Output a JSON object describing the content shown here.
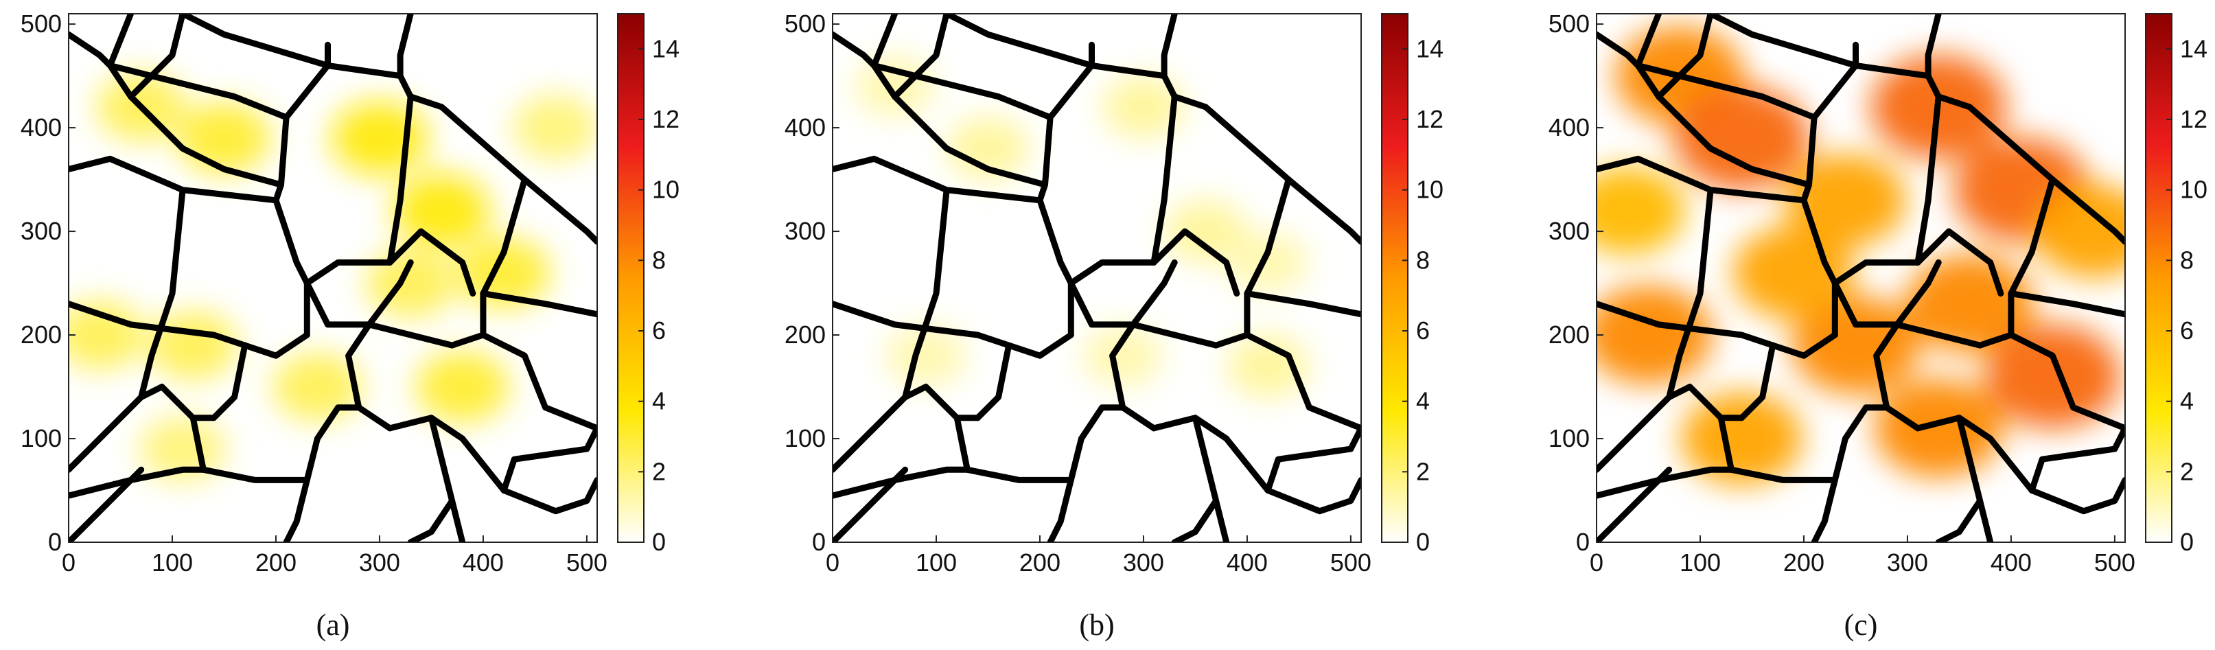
{
  "figure": {
    "captions": [
      "(a)",
      "(b)",
      "(c)"
    ]
  },
  "chart_data": [
    {
      "type": "heatmap",
      "title": "",
      "xlabel": "",
      "ylabel": "",
      "xlim": [
        0,
        510
      ],
      "ylim": [
        0,
        510
      ],
      "x_ticks": [
        0,
        100,
        200,
        300,
        400,
        500
      ],
      "y_ticks": [
        0,
        100,
        200,
        300,
        400,
        500
      ],
      "colorbar": {
        "range": [
          0,
          15
        ],
        "ticks": [
          0,
          2,
          4,
          6,
          8,
          10,
          12,
          14
        ],
        "colors": [
          "#ffffff",
          "#ffe800",
          "#ff9a00",
          "#ee1c1c",
          "#8b0000"
        ]
      },
      "caption": "(a)",
      "overlay": "black grain boundaries (polycrystal microstructure)",
      "field_level": "low-moderate (mostly 1-4)",
      "hotspots": [
        {
          "x": 70,
          "y": 420,
          "v": 2.5
        },
        {
          "x": 150,
          "y": 390,
          "v": 3
        },
        {
          "x": 300,
          "y": 390,
          "v": 3.5
        },
        {
          "x": 360,
          "y": 320,
          "v": 3.5
        },
        {
          "x": 420,
          "y": 260,
          "v": 3
        },
        {
          "x": 330,
          "y": 250,
          "v": 2.5
        },
        {
          "x": 240,
          "y": 150,
          "v": 2.5
        },
        {
          "x": 380,
          "y": 150,
          "v": 3
        },
        {
          "x": 30,
          "y": 200,
          "v": 2.5
        },
        {
          "x": 110,
          "y": 90,
          "v": 2
        },
        {
          "x": 470,
          "y": 400,
          "v": 2
        },
        {
          "x": 120,
          "y": 190,
          "v": 2.5
        }
      ]
    },
    {
      "type": "heatmap",
      "title": "",
      "xlabel": "",
      "ylabel": "",
      "xlim": [
        0,
        510
      ],
      "ylim": [
        0,
        510
      ],
      "x_ticks": [
        0,
        100,
        200,
        300,
        400,
        500
      ],
      "y_ticks": [
        0,
        100,
        200,
        300,
        400,
        500
      ],
      "colorbar": {
        "range": [
          0,
          15
        ],
        "ticks": [
          0,
          2,
          4,
          6,
          8,
          10,
          12,
          14
        ],
        "colors": [
          "#ffffff",
          "#ffe800",
          "#ff9a00",
          "#ee1c1c",
          "#8b0000"
        ]
      },
      "caption": "(b)",
      "overlay": "black grain boundaries (polycrystal microstructure)",
      "field_level": "low (mostly 0-2)",
      "hotspots": [
        {
          "x": 150,
          "y": 380,
          "v": 1.5
        },
        {
          "x": 300,
          "y": 420,
          "v": 1.5
        },
        {
          "x": 360,
          "y": 300,
          "v": 1.5
        },
        {
          "x": 420,
          "y": 270,
          "v": 1.2
        },
        {
          "x": 420,
          "y": 170,
          "v": 1.5
        },
        {
          "x": 280,
          "y": 180,
          "v": 1.2
        },
        {
          "x": 90,
          "y": 180,
          "v": 1.2
        },
        {
          "x": 60,
          "y": 440,
          "v": 1.2
        }
      ]
    },
    {
      "type": "heatmap",
      "title": "",
      "xlabel": "",
      "ylabel": "",
      "xlim": [
        0,
        510
      ],
      "ylim": [
        0,
        510
      ],
      "x_ticks": [
        0,
        100,
        200,
        300,
        400,
        500
      ],
      "y_ticks": [
        0,
        100,
        200,
        300,
        400,
        500
      ],
      "colorbar": {
        "range": [
          0,
          15
        ],
        "ticks": [
          0,
          2,
          4,
          6,
          8,
          10,
          12,
          14
        ],
        "colors": [
          "#ffffff",
          "#ffe800",
          "#ff9a00",
          "#ee1c1c",
          "#8b0000"
        ]
      },
      "caption": "(c)",
      "overlay": "black grain boundaries (polycrystal microstructure)",
      "field_level": "high (mostly 6-10)",
      "hotspots": [
        {
          "x": 80,
          "y": 450,
          "v": 8
        },
        {
          "x": 140,
          "y": 390,
          "v": 9
        },
        {
          "x": 330,
          "y": 420,
          "v": 9
        },
        {
          "x": 410,
          "y": 340,
          "v": 9
        },
        {
          "x": 360,
          "y": 230,
          "v": 8
        },
        {
          "x": 440,
          "y": 160,
          "v": 9
        },
        {
          "x": 250,
          "y": 190,
          "v": 8
        },
        {
          "x": 50,
          "y": 200,
          "v": 8
        },
        {
          "x": 140,
          "y": 100,
          "v": 7
        },
        {
          "x": 330,
          "y": 110,
          "v": 8
        },
        {
          "x": 480,
          "y": 300,
          "v": 7
        },
        {
          "x": 30,
          "y": 320,
          "v": 6
        },
        {
          "x": 240,
          "y": 330,
          "v": 7
        },
        {
          "x": 190,
          "y": 260,
          "v": 7
        }
      ]
    }
  ]
}
